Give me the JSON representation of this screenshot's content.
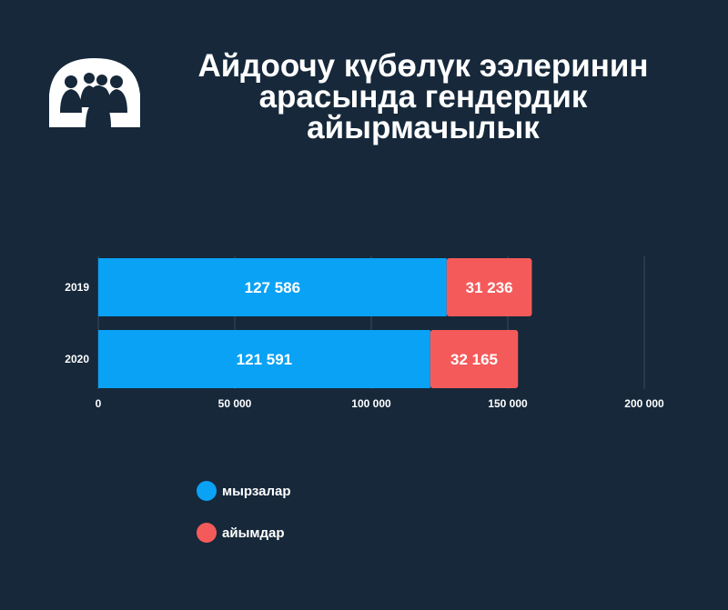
{
  "title": "Айдоочу күбөлүк ээлеринин арасында гендердик айырмачылык",
  "colors": {
    "background": "#16283a",
    "men": "#0aa2f5",
    "women": "#f55a5a",
    "grid": "#3a4a5c",
    "logo": "#ffffff"
  },
  "logo": {
    "icon": "people-group-logo-icon"
  },
  "legend": [
    {
      "label": "мырзалар",
      "color": "#0aa2f5"
    },
    {
      "label": "айымдар",
      "color": "#f55a5a"
    }
  ],
  "chart_data": {
    "type": "bar",
    "orientation": "horizontal",
    "stacked": true,
    "categories": [
      "2019",
      "2020"
    ],
    "series": [
      {
        "name": "мырзалар",
        "values": [
          127586,
          121591
        ],
        "labels": [
          "127 586",
          "121 591"
        ]
      },
      {
        "name": "айымдар",
        "values": [
          31236,
          32165
        ],
        "labels": [
          "31 236",
          "32 165"
        ]
      }
    ],
    "xlim": [
      0,
      200000
    ],
    "xticks": [
      0,
      50000,
      100000,
      150000,
      200000
    ],
    "xtick_labels": [
      "0",
      "50 000",
      "100 000",
      "150 000",
      "200 000"
    ],
    "grid": true,
    "legend_position": "bottom-left"
  }
}
